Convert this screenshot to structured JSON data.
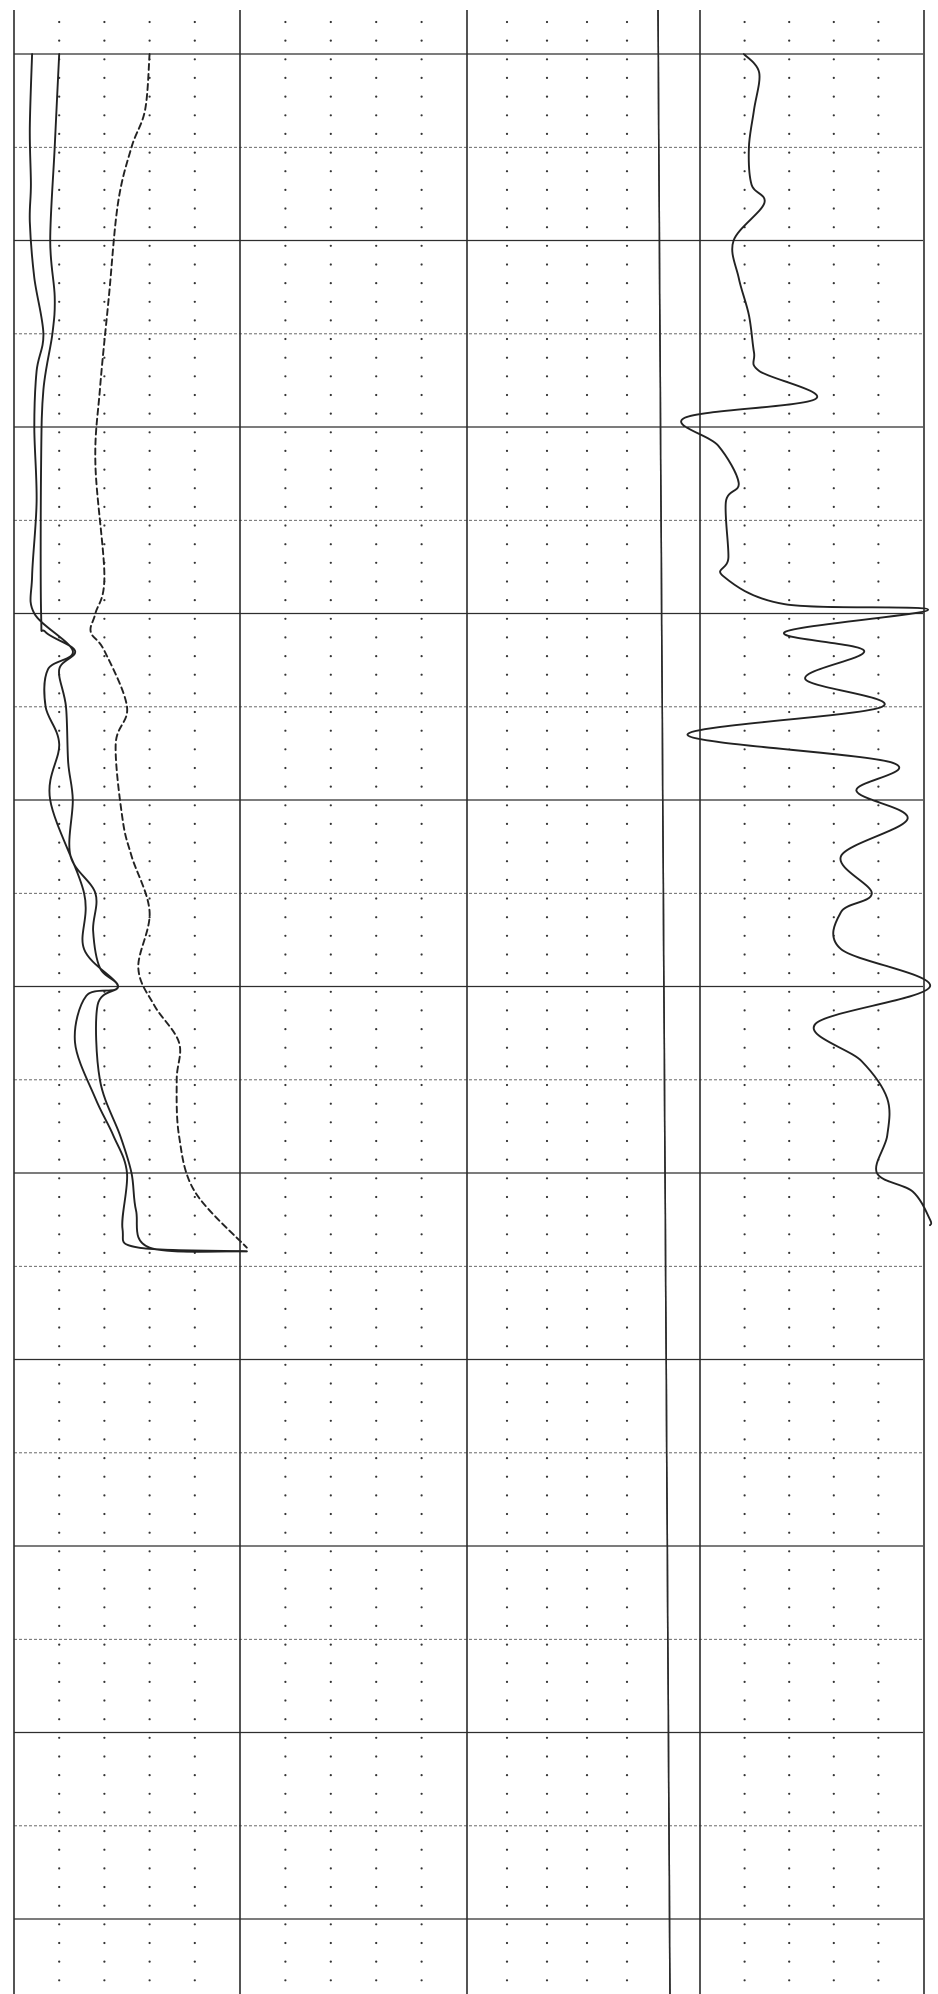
{
  "chart_data": {
    "type": "line",
    "title": "",
    "xlabel": "",
    "ylabel": "",
    "grid": true,
    "legend": "none",
    "colors": {
      "line": "#222222",
      "grid": "#2e2e2e",
      "background": "#ffffff"
    },
    "tracks": [
      {
        "id": "track-1",
        "series": [
          {
            "style": "solid",
            "points": [
              [
                0.8,
                0
              ],
              [
                0.7,
                4
              ],
              [
                0.75,
                7
              ],
              [
                0.7,
                9
              ],
              [
                0.9,
                12
              ],
              [
                1.3,
                15
              ],
              [
                1.0,
                17
              ],
              [
                0.9,
                20
              ],
              [
                1.0,
                24
              ],
              [
                0.8,
                28
              ],
              [
                0.9,
                30
              ],
              [
                2.6,
                32
              ],
              [
                1.5,
                33
              ],
              [
                1.4,
                35
              ],
              [
                2.0,
                37
              ],
              [
                1.6,
                40
              ],
              [
                3.1,
                45
              ],
              [
                3.1,
                48
              ],
              [
                4.6,
                50
              ],
              [
                3.2,
                50.5
              ],
              [
                2.7,
                53
              ],
              [
                3.6,
                56
              ],
              [
                4.4,
                58
              ],
              [
                5.0,
                60
              ],
              [
                4.8,
                63
              ],
              [
                5.5,
                64
              ],
              [
                10.3,
                64.2
              ]
            ]
          },
          {
            "style": "solid",
            "points": [
              [
                2.0,
                0
              ],
              [
                1.8,
                5
              ],
              [
                1.6,
                10
              ],
              [
                1.8,
                13
              ],
              [
                1.7,
                15
              ],
              [
                1.3,
                18
              ],
              [
                1.2,
                22
              ],
              [
                1.2,
                30
              ],
              [
                1.4,
                31
              ],
              [
                2.7,
                32
              ],
              [
                2.0,
                33
              ],
              [
                2.3,
                35
              ],
              [
                2.4,
                38
              ],
              [
                2.6,
                40
              ],
              [
                2.5,
                43
              ],
              [
                3.6,
                45
              ],
              [
                3.5,
                47
              ],
              [
                3.8,
                49
              ],
              [
                4.6,
                50
              ],
              [
                3.7,
                51
              ],
              [
                3.8,
                55
              ],
              [
                4.7,
                58
              ],
              [
                5.2,
                60
              ],
              [
                5.4,
                62
              ],
              [
                6.0,
                64
              ],
              [
                10.3,
                64.2
              ]
            ]
          },
          {
            "style": "dashed",
            "points": [
              [
                6.0,
                0
              ],
              [
                5.8,
                3
              ],
              [
                5.2,
                5
              ],
              [
                4.6,
                8
              ],
              [
                4.2,
                13
              ],
              [
                3.8,
                18
              ],
              [
                3.6,
                22
              ],
              [
                4.0,
                28
              ],
              [
                3.6,
                30
              ],
              [
                3.4,
                31
              ],
              [
                4.0,
                32
              ],
              [
                5.0,
                35
              ],
              [
                4.5,
                37
              ],
              [
                4.8,
                41
              ],
              [
                5.2,
                43
              ],
              [
                6.0,
                46
              ],
              [
                5.5,
                49
              ],
              [
                6.2,
                51
              ],
              [
                7.3,
                53
              ],
              [
                7.2,
                55
              ],
              [
                7.3,
                58
              ],
              [
                8.0,
                61
              ],
              [
                10.3,
                64
              ]
            ]
          }
        ]
      },
      {
        "id": "track-2",
        "series": []
      },
      {
        "id": "track-3",
        "series": [
          {
            "style": "solid",
            "points": [
              [
                3.0,
                0
              ],
              [
                3.6,
                1
              ],
              [
                3.4,
                3
              ],
              [
                3.2,
                5
              ],
              [
                3.3,
                7
              ],
              [
                3.8,
                8
              ],
              [
                2.6,
                10
              ],
              [
                2.8,
                12
              ],
              [
                3.2,
                14
              ],
              [
                3.4,
                16
              ],
              [
                3.6,
                17
              ],
              [
                5.8,
                18.5
              ],
              [
                0.7,
                19.5
              ],
              [
                2.0,
                21
              ],
              [
                2.8,
                23
              ],
              [
                2.3,
                24
              ],
              [
                2.4,
                27
              ],
              [
                2.2,
                28
              ],
              [
                4.6,
                29.5
              ],
              [
                10.2,
                29.8
              ],
              [
                4.6,
                31
              ],
              [
                7.7,
                32
              ],
              [
                5.4,
                33.5
              ],
              [
                8.4,
                35
              ],
              [
                0.8,
                36.5
              ],
              [
                8.8,
                38
              ],
              [
                7.4,
                39.5
              ],
              [
                9.4,
                41
              ],
              [
                6.8,
                43
              ],
              [
                8.0,
                45
              ],
              [
                6.8,
                46
              ],
              [
                6.8,
                48
              ],
              [
                10.4,
                50
              ],
              [
                5.8,
                52
              ],
              [
                7.6,
                54
              ],
              [
                8.6,
                56
              ],
              [
                8.6,
                58
              ],
              [
                8.2,
                60
              ],
              [
                9.6,
                61
              ],
              [
                10.6,
                62.5
              ],
              [
                12.2,
                62.8
              ]
            ]
          }
        ]
      }
    ]
  }
}
